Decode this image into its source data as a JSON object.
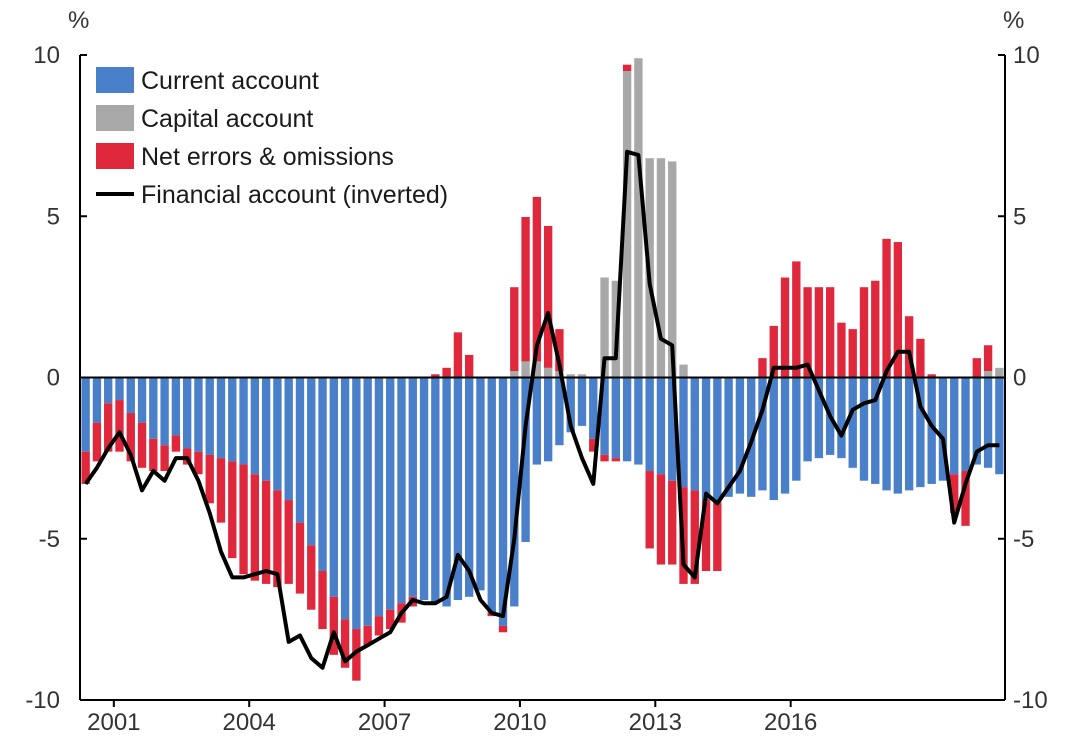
{
  "chart_data": {
    "type": "bar",
    "stacked": true,
    "left_axis_unit": "%",
    "right_axis_unit": "%",
    "ylim": [
      -10,
      10
    ],
    "y_ticks": [
      10,
      5,
      0,
      -5,
      -10
    ],
    "y_tick_labels": [
      "10",
      "5",
      "0",
      "-5",
      "-10"
    ],
    "x_ticks": [
      2001,
      2004,
      2007,
      2010,
      2013,
      2016
    ],
    "x_tick_labels": [
      "2001",
      "2004",
      "2007",
      "2010",
      "2013",
      "2016"
    ],
    "x_start": 2000.25,
    "x_step": 0.25,
    "legend_position": "top-left",
    "grid": false,
    "colors": {
      "current_account": "#4a7fc9",
      "capital_account": "#a8a8a8",
      "net_errors": "#e0283c",
      "financial_account": "#000000"
    },
    "series": [
      {
        "name": "Current account",
        "values": [
          -2.3,
          -1.4,
          -0.8,
          -0.7,
          -1.1,
          -1.4,
          -1.9,
          -2.1,
          -1.8,
          -2.2,
          -2.3,
          -2.4,
          -2.5,
          -2.6,
          -2.7,
          -3.0,
          -3.2,
          -3.5,
          -3.8,
          -4.5,
          -5.2,
          -6.0,
          -6.8,
          -7.5,
          -7.8,
          -7.7,
          -7.4,
          -7.2,
          -7.0,
          -6.8,
          -6.9,
          -7.0,
          -7.1,
          -6.9,
          -6.8,
          -6.6,
          -7.3,
          -7.7,
          -7.1,
          -5.1,
          -2.7,
          -2.6,
          -2.1,
          -1.7,
          -1.5,
          -1.9,
          -2.4,
          -2.5,
          -2.6,
          -2.7,
          -2.9,
          -3.0,
          -3.2,
          -3.4,
          -3.5,
          -3.8,
          -3.9,
          -3.7,
          -3.6,
          -3.7,
          -3.5,
          -3.8,
          -3.6,
          -3.2,
          -2.6,
          -2.5,
          -2.4,
          -2.5,
          -2.8,
          -3.2,
          -3.3,
          -3.5,
          -3.6,
          -3.5,
          -3.4,
          -3.3,
          -3.2,
          -3.0,
          -2.9,
          -2.7,
          -2.8,
          -3.0
        ]
      },
      {
        "name": "Capital account",
        "values": [
          0,
          0,
          0,
          0,
          0,
          0,
          0,
          0,
          0,
          0,
          0,
          0,
          0,
          0,
          0,
          0,
          0,
          0,
          0,
          0,
          0,
          0,
          0,
          0,
          0,
          0,
          0,
          0,
          0,
          0,
          0,
          0,
          0,
          0,
          0,
          0,
          0,
          0,
          0.2,
          0.5,
          0.5,
          0.3,
          0.2,
          0.1,
          0.1,
          0,
          3.1,
          3.0,
          9.5,
          9.9,
          6.8,
          6.8,
          6.7,
          0.4,
          0,
          0,
          0,
          0,
          0,
          0,
          0,
          0,
          0,
          0,
          0,
          0,
          0,
          0,
          0,
          0,
          0,
          0,
          0,
          0,
          0,
          0,
          0,
          0,
          0,
          0,
          0.2,
          0.3,
          0.2
        ]
      },
      {
        "name": "Net errors & omissions",
        "values": [
          -1.0,
          -1.2,
          -1.5,
          -1.6,
          -1.5,
          -1.4,
          -1.0,
          -0.8,
          -0.5,
          -0.5,
          -0.7,
          -1.5,
          -2.0,
          -3.0,
          -3.4,
          -3.3,
          -3.2,
          -3.0,
          -2.6,
          -2.2,
          -2.0,
          -1.8,
          -1.8,
          -1.5,
          -1.6,
          -0.6,
          -0.6,
          -0.6,
          -0.6,
          -0.3,
          0,
          0.1,
          0.3,
          1.4,
          0.7,
          0,
          -0.1,
          -0.2,
          2.6,
          5.1,
          5.1,
          4.4,
          1.3,
          0,
          0,
          -0.4,
          -0.2,
          -0.1,
          0.2,
          0,
          -2.4,
          -2.8,
          -2.6,
          -3.0,
          -2.9,
          -2.2,
          -2.1,
          0,
          0,
          0,
          0.6,
          1.6,
          3.1,
          3.6,
          2.8,
          2.8,
          2.8,
          1.7,
          1.5,
          2.8,
          3.0,
          4.3,
          4.2,
          1.9,
          1.2,
          0.1,
          0,
          -1.2,
          -1.7,
          0.6,
          0.8,
          0
        ]
      }
    ],
    "line_series": {
      "name": "Financial account (inverted)",
      "values": [
        -3.3,
        -2.8,
        -2.2,
        -1.7,
        -2.4,
        -3.5,
        -2.9,
        -3.2,
        -2.5,
        -2.5,
        -3.2,
        -4.2,
        -5.4,
        -6.2,
        -6.2,
        -6.1,
        -6.0,
        -6.1,
        -8.2,
        -8.0,
        -8.7,
        -9.0,
        -7.9,
        -8.8,
        -8.5,
        -8.3,
        -8.1,
        -7.9,
        -7.3,
        -6.9,
        -7.0,
        -7.0,
        -6.8,
        -5.5,
        -6.0,
        -6.9,
        -7.3,
        -7.4,
        -5.0,
        -1.5,
        1.0,
        2.0,
        0.4,
        -1.5,
        -2.5,
        -3.3,
        0.6,
        0.6,
        7.0,
        6.9,
        2.9,
        1.2,
        1.0,
        -5.8,
        -6.2,
        -3.6,
        -3.9,
        -3.4,
        -2.9,
        -2.0,
        -1.0,
        0.3,
        0.3,
        0.3,
        0.4,
        -0.4,
        -1.2,
        -1.8,
        -1.0,
        -0.8,
        -0.7,
        0.2,
        0.8,
        0.8,
        -0.9,
        -1.5,
        -1.9,
        -4.5,
        -3.3,
        -2.3,
        -2.1,
        -2.1
      ]
    },
    "legend": [
      {
        "label": "Current account",
        "kind": "box",
        "key": "current_account"
      },
      {
        "label": "Capital account",
        "kind": "box",
        "key": "capital_account"
      },
      {
        "label": "Net errors & omissions",
        "kind": "box",
        "key": "net_errors"
      },
      {
        "label": "Financial account (inverted)",
        "kind": "line",
        "key": "financial_account"
      }
    ]
  }
}
